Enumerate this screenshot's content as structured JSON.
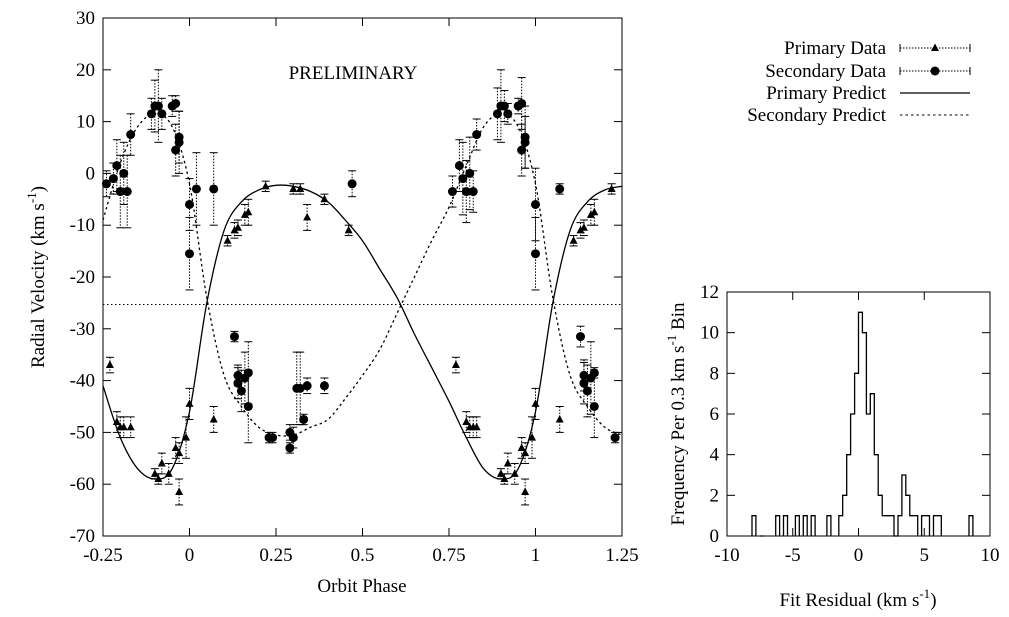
{
  "chart_data": [
    {
      "type": "scatter",
      "title": "",
      "annotation": "PRELIMINARY",
      "xlabel": "Orbit Phase",
      "ylabel_main": "Radial Velocity (km s",
      "ylabel_sup": "-1",
      "ylabel_tail": ")",
      "xlim": [
        -0.25,
        1.25
      ],
      "ylim": [
        -70,
        30
      ],
      "xticks": [
        -0.25,
        0,
        0.25,
        0.5,
        0.75,
        1,
        1.25
      ],
      "xtick_labels": [
        "-0.25",
        "0",
        "0.25",
        "0.5",
        "0.75",
        "1",
        "1.25"
      ],
      "yticks": [
        -70,
        -60,
        -50,
        -40,
        -30,
        -20,
        -10,
        0,
        10,
        20,
        30
      ],
      "ytick_labels": [
        "-70",
        "-60",
        "-50",
        "-40",
        "-30",
        "-20",
        "-10",
        "0",
        "10",
        "20",
        "30"
      ],
      "legend_position": "outside-top-right",
      "legend": [
        "Primary Data",
        "Secondary Data",
        "Primary Predict",
        "Secondary Predict"
      ],
      "systemic_velocity": -25.3,
      "primary_curve": {
        "x": [
          -0.25,
          -0.2,
          -0.15,
          -0.1,
          -0.05,
          0.0,
          0.05,
          0.1,
          0.15,
          0.2,
          0.25,
          0.3,
          0.35,
          0.4,
          0.45,
          0.5,
          0.55,
          0.6,
          0.65,
          0.7,
          0.75,
          0.8,
          0.85,
          0.9,
          0.95,
          1.0,
          1.05,
          1.1,
          1.15,
          1.2,
          1.25
        ],
        "y": [
          -41,
          -51,
          -57,
          -59,
          -57,
          -46,
          -25,
          -11,
          -5.5,
          -3.2,
          -2.3,
          -2.5,
          -3.5,
          -5.5,
          -9,
          -13,
          -18.5,
          -24,
          -31,
          -37.5,
          -44,
          -51,
          -57,
          -59,
          -57,
          -46,
          -25,
          -11,
          -5.5,
          -3.2,
          -2.5
        ]
      },
      "secondary_curve": {
        "x": [
          -0.25,
          -0.2,
          -0.15,
          -0.1,
          -0.05,
          0.0,
          0.05,
          0.1,
          0.15,
          0.2,
          0.25,
          0.3,
          0.35,
          0.4,
          0.45,
          0.5,
          0.55,
          0.6,
          0.65,
          0.7,
          0.75,
          0.8,
          0.85,
          0.9,
          0.95,
          1.0,
          1.05,
          1.1,
          1.15,
          1.2,
          1.25
        ],
        "y": [
          -9,
          2,
          9,
          11.5,
          9,
          -2,
          -24,
          -39,
          -45,
          -49,
          -50.5,
          -50.5,
          -49,
          -47.5,
          -43.5,
          -39,
          -34,
          -27,
          -20,
          -13,
          -6.5,
          1.5,
          9,
          11.5,
          9,
          -2,
          -24,
          -39,
          -45,
          -49,
          -50.5
        ]
      },
      "series": [
        {
          "name": "Primary Data",
          "marker": "triangle",
          "x": [
            -0.23,
            -0.21,
            -0.2,
            -0.19,
            -0.17,
            -0.1,
            -0.09,
            -0.08,
            -0.06,
            -0.04,
            -0.03,
            -0.03,
            -0.01,
            0.0,
            0.07,
            0.11,
            0.13,
            0.14,
            0.16,
            0.17,
            0.22,
            0.3,
            0.32,
            0.34,
            0.39,
            0.46,
            0.77,
            0.8,
            0.81,
            0.82,
            0.83,
            0.9,
            0.91,
            0.92,
            0.94,
            0.96,
            0.97,
            0.97,
            0.99,
            1.0,
            1.07,
            1.11,
            1.13,
            1.14,
            1.16,
            1.17,
            1.22
          ],
          "y": [
            -37,
            -48,
            -49,
            -49,
            -49,
            -58,
            -59,
            -56,
            -58,
            -53,
            -54,
            -61.5,
            -51,
            -44.5,
            -47.5,
            -13,
            -11,
            -10.5,
            -8,
            -7.5,
            -2.5,
            -3,
            -3,
            -8.5,
            -5,
            -11,
            -37,
            -48,
            -49,
            -49,
            -49,
            -58,
            -59,
            -56,
            -58,
            -53,
            -54,
            -61.5,
            -51,
            -44.5,
            -47.5,
            -13,
            -11,
            -10.5,
            -8,
            -7.5,
            -3
          ],
          "err": [
            1.5,
            2,
            2,
            2,
            2,
            1,
            1,
            2,
            2,
            2,
            2,
            2.5,
            4,
            3,
            2.5,
            1,
            1.5,
            1.5,
            2,
            2.5,
            1,
            1,
            1,
            2.5,
            1,
            1,
            1.5,
            2,
            2,
            2,
            2,
            1,
            1,
            2,
            2,
            2,
            2,
            2.5,
            4,
            3,
            2.5,
            1,
            1.5,
            1.5,
            2,
            2.5,
            1
          ]
        },
        {
          "name": "Secondary Data",
          "marker": "circle",
          "x": [
            -0.24,
            -0.22,
            -0.21,
            -0.2,
            -0.19,
            -0.18,
            -0.17,
            -0.11,
            -0.1,
            -0.09,
            -0.08,
            -0.05,
            -0.04,
            -0.04,
            -0.03,
            -0.03,
            0.0,
            0.0,
            0.02,
            0.07,
            0.13,
            0.14,
            0.14,
            0.15,
            0.16,
            0.17,
            0.17,
            0.23,
            0.24,
            0.29,
            0.29,
            0.3,
            0.31,
            0.32,
            0.33,
            0.34,
            0.39,
            0.47,
            0.76,
            0.78,
            0.79,
            0.8,
            0.81,
            0.82,
            0.83,
            0.89,
            0.9,
            0.91,
            0.92,
            0.95,
            0.96,
            0.96,
            0.97,
            0.97,
            1.0,
            1.0,
            1.07,
            1.13,
            1.14,
            1.14,
            1.15,
            1.16,
            1.17,
            1.17,
            1.23
          ],
          "y": [
            -2,
            -1,
            1.5,
            -3.5,
            0,
            -3.5,
            7.5,
            11.5,
            13,
            13,
            11.5,
            13,
            13.5,
            4.5,
            7,
            6,
            -6,
            -15.5,
            -3,
            -3,
            -31.5,
            -39,
            -40.5,
            -42,
            -39.5,
            -45,
            -38.5,
            -51,
            -51,
            -53,
            -50,
            -51,
            -41.5,
            -41.5,
            -47.5,
            -41,
            -41,
            -2,
            -3.5,
            1.5,
            -1,
            -3.5,
            0,
            -3.5,
            7.5,
            11.5,
            13,
            13,
            11.5,
            13,
            13.5,
            4.5,
            7,
            6,
            -6,
            -15.5,
            -3,
            -31.5,
            -39,
            -40.5,
            -42,
            -39.5,
            -45,
            -38.5,
            -51
          ],
          "err": [
            2.5,
            3,
            5,
            7,
            6,
            7,
            4,
            3,
            5,
            7,
            3,
            2,
            1.5,
            5,
            5,
            6,
            5,
            7,
            7,
            7,
            1,
            2,
            3,
            4,
            5,
            7,
            6,
            1,
            1,
            1,
            1.5,
            2,
            7,
            7,
            1,
            1.5,
            1.5,
            2.5,
            3,
            5,
            7,
            6,
            7,
            4,
            3,
            5,
            7,
            3,
            2,
            1.5,
            5,
            5,
            6,
            5,
            7,
            7,
            1,
            2,
            3,
            4,
            5,
            7,
            6,
            1,
            1
          ]
        }
      ]
    },
    {
      "type": "histogram",
      "title": "",
      "xlabel_main": "Fit Residual (km s",
      "xlabel_sup": "-1",
      "xlabel_tail": ")",
      "ylabel_main": "Frequency Per 0.3 km s",
      "ylabel_sup": "-1",
      "ylabel_tail": " Bin",
      "xlim": [
        -10,
        10
      ],
      "ylim": [
        0,
        12
      ],
      "xticks": [
        -10,
        -5,
        0,
        5,
        10
      ],
      "xtick_labels": [
        "-10",
        "-5",
        "0",
        "5",
        "10"
      ],
      "yticks": [
        0,
        2,
        4,
        6,
        8,
        10,
        12
      ],
      "ytick_labels": [
        "0",
        "2",
        "4",
        "6",
        "8",
        "10",
        "12"
      ],
      "bin_width": 0.3,
      "bin_starts": [
        -8.1,
        -7.5,
        -6.3,
        -5.7,
        -4.8,
        -4.2,
        -3.6,
        -2.4,
        -1.5,
        -1.2,
        -0.9,
        -0.6,
        -0.3,
        0.0,
        0.3,
        0.6,
        0.9,
        1.2,
        1.5,
        1.8,
        2.1,
        2.4,
        2.7,
        3.0,
        3.3,
        3.6,
        3.9,
        4.2,
        4.8,
        5.1,
        5.7,
        6.0,
        8.4
      ],
      "counts": [
        1,
        0,
        1,
        1,
        1,
        1,
        1,
        1,
        1,
        2,
        4,
        6,
        8,
        11,
        10,
        6,
        7,
        4,
        2,
        1,
        1,
        1,
        0,
        1,
        3,
        2,
        1,
        1,
        1,
        1,
        1,
        1,
        1
      ]
    }
  ]
}
